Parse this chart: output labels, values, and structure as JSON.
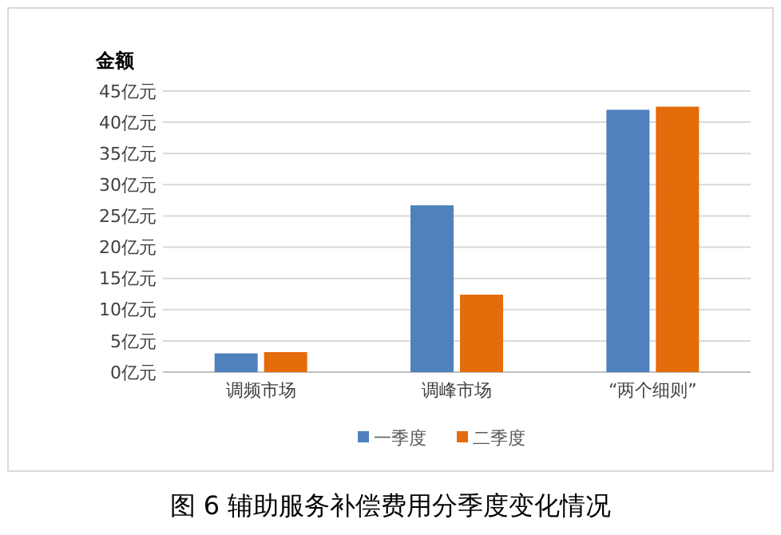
{
  "chart_data": {
    "type": "bar",
    "title": "图 6   辅助服务补偿费用分季度变化情况",
    "ylabel": "金额",
    "categories": [
      "调频市场",
      "调峰市场",
      "“两个细则”"
    ],
    "series": [
      {
        "name": "一季度",
        "color": "#4f81bd",
        "values": [
          3.0,
          26.7,
          42.0
        ]
      },
      {
        "name": "二季度",
        "color": "#e46c0a",
        "values": [
          3.2,
          12.4,
          42.5
        ]
      }
    ],
    "ylim": [
      0,
      45
    ],
    "yticks": [
      {
        "value": 0,
        "label": "0亿元"
      },
      {
        "value": 5,
        "label": "5亿元"
      },
      {
        "value": 10,
        "label": "10亿元"
      },
      {
        "value": 15,
        "label": "15亿元"
      },
      {
        "value": 20,
        "label": "20亿元"
      },
      {
        "value": 25,
        "label": "25亿元"
      },
      {
        "value": 30,
        "label": "30亿元"
      },
      {
        "value": 35,
        "label": "35亿元"
      },
      {
        "value": 40,
        "label": "40亿元"
      },
      {
        "value": 45,
        "label": "45亿元"
      }
    ],
    "grid": "y",
    "legend": "bottom"
  }
}
